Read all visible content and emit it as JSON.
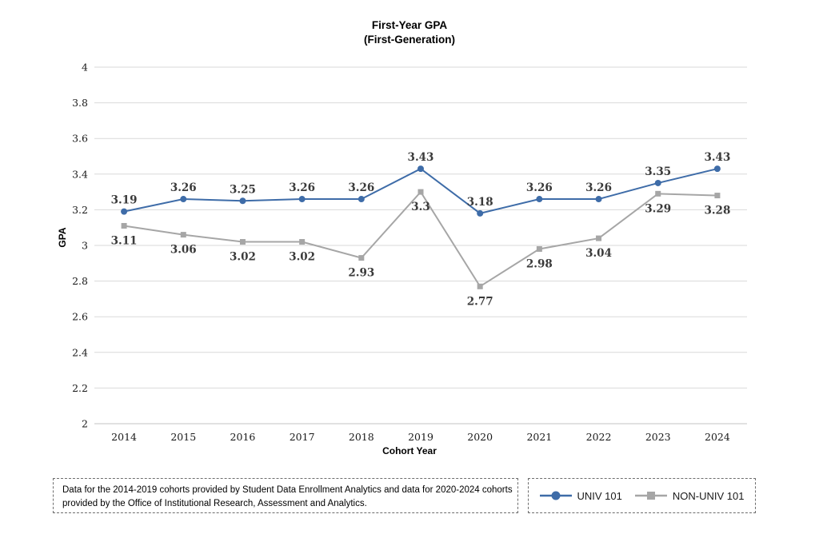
{
  "chart_data": {
    "type": "line",
    "title": "First-Year GPA",
    "subtitle": "(First-Generation)",
    "xlabel": "Cohort Year",
    "ylabel": "GPA",
    "ylim": [
      2,
      4
    ],
    "ytick_step": 0.2,
    "grid": true,
    "legend_position": "bottom-right",
    "categories": [
      "2014",
      "2015",
      "2016",
      "2017",
      "2018",
      "2019",
      "2020",
      "2021",
      "2022",
      "2023",
      "2024"
    ],
    "series": [
      {
        "name": "UNIV 101",
        "color": "#3E6CA8",
        "marker": "circle",
        "label_position": "above",
        "values": [
          3.19,
          3.26,
          3.25,
          3.26,
          3.26,
          3.43,
          3.18,
          3.26,
          3.26,
          3.35,
          3.43
        ]
      },
      {
        "name": "NON-UNIV 101",
        "color": "#A6A6A6",
        "marker": "square",
        "label_position": "below",
        "values": [
          3.11,
          3.06,
          3.02,
          3.02,
          2.93,
          3.3,
          2.77,
          2.98,
          3.04,
          3.29,
          3.28
        ]
      }
    ],
    "gridline_color": "#d9d9d9",
    "axis_line_color": "#c3c3c3"
  },
  "footnote": {
    "lines": [
      "Data for the 2014-2019 cohorts provided by Student Data Enrollment Analytics and data for 2020-2024 cohorts",
      "provided by the Office of Institutional Research, Assessment and Analytics."
    ]
  }
}
